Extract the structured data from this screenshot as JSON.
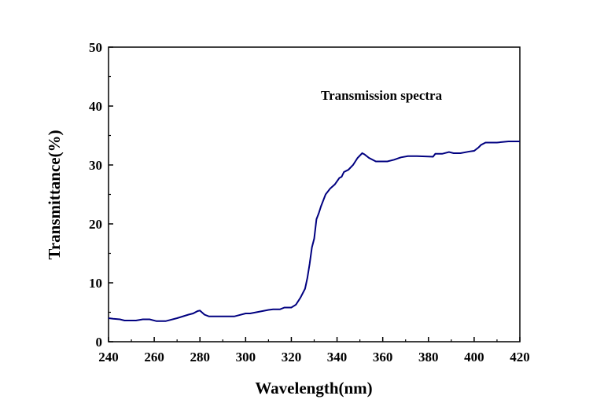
{
  "chart_data": {
    "type": "line",
    "title": "",
    "annotation": "Transmission spectra",
    "xlabel": "Wavelength(nm)",
    "ylabel": "Transmittance(%)",
    "xlim": [
      240,
      420
    ],
    "ylim": [
      0,
      50
    ],
    "xticks": [
      240,
      260,
      280,
      300,
      320,
      340,
      360,
      380,
      400,
      420
    ],
    "yticks": [
      0,
      10,
      20,
      30,
      40,
      50
    ],
    "grid": false,
    "line_color": "#000080",
    "series": [
      {
        "x": [
          240,
          242,
          245,
          247,
          252,
          255,
          258,
          261,
          265,
          270,
          275,
          277,
          279,
          280,
          282,
          284,
          295,
          300,
          302,
          310,
          312,
          315,
          317,
          320,
          322,
          324,
          326,
          327,
          328,
          329,
          330,
          331,
          332,
          333,
          335,
          337,
          339,
          341,
          342,
          343,
          345,
          347,
          349,
          351,
          352,
          354,
          357,
          362,
          365,
          368,
          371,
          375,
          382,
          383,
          386,
          389,
          391,
          394,
          398,
          400,
          402,
          403,
          405,
          410,
          415,
          420
        ],
        "y": [
          4.0,
          3.9,
          3.8,
          3.6,
          3.6,
          3.8,
          3.8,
          3.5,
          3.5,
          4.0,
          4.6,
          4.8,
          5.2,
          5.3,
          4.6,
          4.3,
          4.3,
          4.8,
          4.8,
          5.4,
          5.5,
          5.5,
          5.8,
          5.8,
          6.3,
          7.5,
          9.0,
          10.8,
          13.2,
          16.0,
          17.5,
          20.8,
          21.8,
          23.0,
          25.0,
          26.0,
          26.7,
          27.8,
          28.0,
          28.8,
          29.2,
          30.0,
          31.2,
          32.0,
          31.8,
          31.2,
          30.6,
          30.6,
          30.9,
          31.3,
          31.5,
          31.5,
          31.4,
          31.9,
          31.9,
          32.2,
          32.0,
          32.0,
          32.3,
          32.4,
          33.0,
          33.4,
          33.8,
          33.8,
          34.0,
          34.0
        ]
      }
    ]
  }
}
